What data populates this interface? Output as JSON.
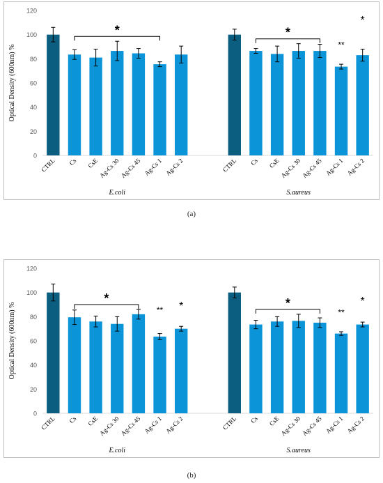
{
  "ylabel": "Optical Density (600nm) %",
  "colors": {
    "ctrl": "#0b5e7f",
    "bar": "#0b95d8",
    "axis": "#d9d9d9",
    "tick": "#595959",
    "bracket": "#000000"
  },
  "yticks": [
    0,
    20,
    40,
    60,
    80,
    100,
    120
  ],
  "captions": [
    "(a)",
    "(b)"
  ],
  "chart_data": [
    {
      "type": "bar",
      "ylim": [
        0,
        120
      ],
      "ylabel": "Optical Density (600nm) %",
      "groups": [
        {
          "name": "E.coli",
          "categories": [
            "CTRL",
            "Cs",
            "CsE",
            "Ag-Cs 30",
            "Ag-Cs 45",
            "Ag-Cs 1",
            "Ag-Cs 2"
          ],
          "values": [
            100,
            83.5,
            81,
            86.5,
            84.5,
            75.5,
            83.5
          ],
          "errors": [
            6,
            4,
            7,
            8,
            4,
            2,
            7
          ],
          "bracket": {
            "from": 1,
            "to": 5,
            "label": "*"
          },
          "marks": []
        },
        {
          "name": "S.aureus",
          "categories": [
            "CTRL",
            "Cs",
            "CsE",
            "Ag-Cs 30",
            "Ag-Cs 45",
            "Ag-Cs 1",
            "Ag-Cs 2"
          ],
          "values": [
            100,
            86.5,
            84,
            86.5,
            86.5,
            73.5,
            83
          ],
          "errors": [
            4.5,
            2,
            6.5,
            6,
            5.5,
            2,
            5
          ],
          "bracket": {
            "from": 1,
            "to": 4,
            "label": "*"
          },
          "marks": [
            {
              "index": 5,
              "label": "**",
              "value": 89
            },
            {
              "index": 6,
              "label": "*",
              "value": 109
            }
          ]
        }
      ]
    },
    {
      "type": "bar",
      "ylim": [
        0,
        120
      ],
      "ylabel": "Optical Density (600nm) %",
      "groups": [
        {
          "name": "E.coli",
          "categories": [
            "CTRL",
            "Cs",
            "CsE",
            "Ag-Cs 30",
            "Ag-Cs 45",
            "Ag-Cs 1",
            "Ag-Cs 2"
          ],
          "values": [
            100,
            79.5,
            76,
            74,
            82,
            63.5,
            70
          ],
          "errors": [
            7,
            6,
            4.5,
            6,
            4,
            2.5,
            2
          ],
          "bracket": {
            "from": 1,
            "to": 4,
            "label": "*"
          },
          "marks": [
            {
              "index": 5,
              "label": "**",
              "value": 83
            },
            {
              "index": 6,
              "label": "*",
              "value": 86
            }
          ]
        },
        {
          "name": "S.aureus",
          "categories": [
            "CTRL",
            "Cs",
            "CsE",
            "Ag-Cs 30",
            "Ag-Cs 45",
            "Ag-Cs 1",
            "Ag-Cs 2"
          ],
          "values": [
            100,
            73.5,
            76,
            76.5,
            75,
            66,
            73.5
          ],
          "errors": [
            4.5,
            3.5,
            4,
            5.5,
            4,
            1.5,
            2
          ],
          "bracket": {
            "from": 1,
            "to": 4,
            "label": "*"
          },
          "marks": [
            {
              "index": 5,
              "label": "**",
              "value": 81
            },
            {
              "index": 6,
              "label": "*",
              "value": 90
            }
          ]
        }
      ]
    }
  ]
}
